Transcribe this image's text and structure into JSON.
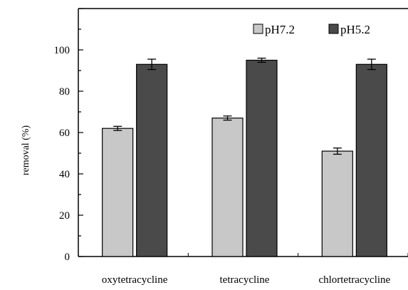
{
  "chart_data": {
    "type": "bar",
    "title": "",
    "xlabel": "",
    "ylabel": "removal (%)",
    "categories": [
      "oxytetracycline",
      "tetracycline",
      "chlortetracycline"
    ],
    "series": [
      {
        "name": "pH7.2",
        "values": [
          62,
          67,
          51
        ],
        "errors": [
          1,
          1,
          1.5
        ],
        "color": "#c8c8c8"
      },
      {
        "name": "pH5.2",
        "values": [
          93,
          95,
          93
        ],
        "errors": [
          2.5,
          1,
          2.5
        ],
        "color": "#4a4a4a"
      }
    ],
    "ylim": [
      0,
      120
    ],
    "yticks": [
      0,
      20,
      40,
      60,
      80,
      100
    ],
    "legend_position": "top-right",
    "grid": false
  }
}
